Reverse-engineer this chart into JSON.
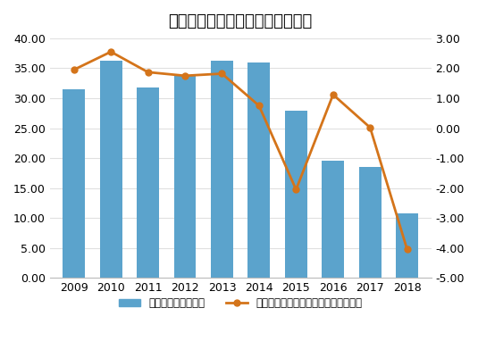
{
  "title": "大连友谊历年总营收与净利润走势",
  "years": [
    2009,
    2010,
    2011,
    2012,
    2013,
    2014,
    2015,
    2016,
    2017,
    2018
  ],
  "revenue": [
    31.5,
    36.2,
    31.8,
    33.9,
    36.3,
    35.9,
    27.9,
    19.5,
    18.5,
    10.8
  ],
  "net_profit": [
    1.95,
    2.55,
    1.87,
    1.75,
    1.82,
    0.75,
    -2.05,
    1.12,
    0.02,
    -4.05
  ],
  "bar_color": "#5BA3CC",
  "line_color": "#D4741A",
  "bar_label": "营业总收入（亿元）",
  "line_label": "归属于母公司所有者的净利润（亿元）",
  "ylim_left": [
    0,
    40
  ],
  "ylim_right": [
    -5,
    3
  ],
  "yticks_left": [
    0.0,
    5.0,
    10.0,
    15.0,
    20.0,
    25.0,
    30.0,
    35.0,
    40.0
  ],
  "yticks_right": [
    -5.0,
    -4.0,
    -3.0,
    -2.0,
    -1.0,
    0.0,
    1.0,
    2.0,
    3.0
  ],
  "bg_color": "#FFFFFF",
  "grid_color": "#E0E0E0"
}
